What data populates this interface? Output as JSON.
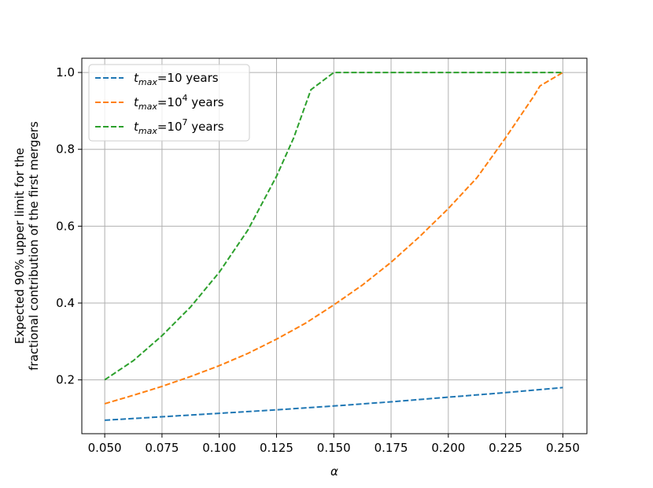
{
  "chart_data": {
    "type": "line",
    "title": "",
    "xlabel": "α",
    "ylabel_lines": [
      "Expected 90% upper limit for the",
      "fractional contribution of the first mergers"
    ],
    "xlim": [
      0.04,
      0.2605
    ],
    "ylim": [
      0.06,
      1.037
    ],
    "xticks": [
      0.05,
      0.075,
      0.1,
      0.125,
      0.15,
      0.175,
      0.2,
      0.225,
      0.25
    ],
    "xtick_labels": [
      "0.050",
      "0.075",
      "0.100",
      "0.125",
      "0.150",
      "0.175",
      "0.200",
      "0.225",
      "0.250"
    ],
    "yticks": [
      0.2,
      0.4,
      0.6,
      0.8,
      1.0
    ],
    "ytick_labels": [
      "0.2",
      "0.4",
      "0.6",
      "0.8",
      "1.0"
    ],
    "grid": true,
    "legend_position": "top-left",
    "series": [
      {
        "name_main": "t",
        "name_sub": "max",
        "name_pre": "=10",
        "name_sup": "",
        "name_post": " years",
        "color": "#1f77b4",
        "x": [
          0.05,
          0.075,
          0.1,
          0.125,
          0.15,
          0.175,
          0.2,
          0.225,
          0.25
        ],
        "values": [
          0.095,
          0.104,
          0.113,
          0.122,
          0.132,
          0.143,
          0.155,
          0.167,
          0.18
        ]
      },
      {
        "name_main": "t",
        "name_sub": "max",
        "name_pre": "=10",
        "name_sup": "4",
        "name_post": " years",
        "color": "#ff7f0e",
        "x": [
          0.05,
          0.0625,
          0.075,
          0.0875,
          0.1,
          0.1125,
          0.125,
          0.1375,
          0.15,
          0.1625,
          0.175,
          0.1875,
          0.2,
          0.2125,
          0.225,
          0.2375,
          0.24,
          0.25
        ],
        "values": [
          0.138,
          0.16,
          0.183,
          0.209,
          0.237,
          0.269,
          0.306,
          0.347,
          0.395,
          0.447,
          0.506,
          0.573,
          0.646,
          0.726,
          0.83,
          0.94,
          0.965,
          1.0
        ]
      },
      {
        "name_main": "t",
        "name_sub": "max",
        "name_pre": "=10",
        "name_sup": "7",
        "name_post": " years",
        "color": "#2ca02c",
        "x": [
          0.05,
          0.0625,
          0.075,
          0.0875,
          0.1,
          0.1125,
          0.125,
          0.1325,
          0.14,
          0.15,
          0.175,
          0.2,
          0.225,
          0.25
        ],
        "values": [
          0.2,
          0.25,
          0.315,
          0.39,
          0.48,
          0.59,
          0.73,
          0.83,
          0.955,
          1.0,
          1.0,
          1.0,
          1.0,
          1.0
        ]
      }
    ]
  }
}
